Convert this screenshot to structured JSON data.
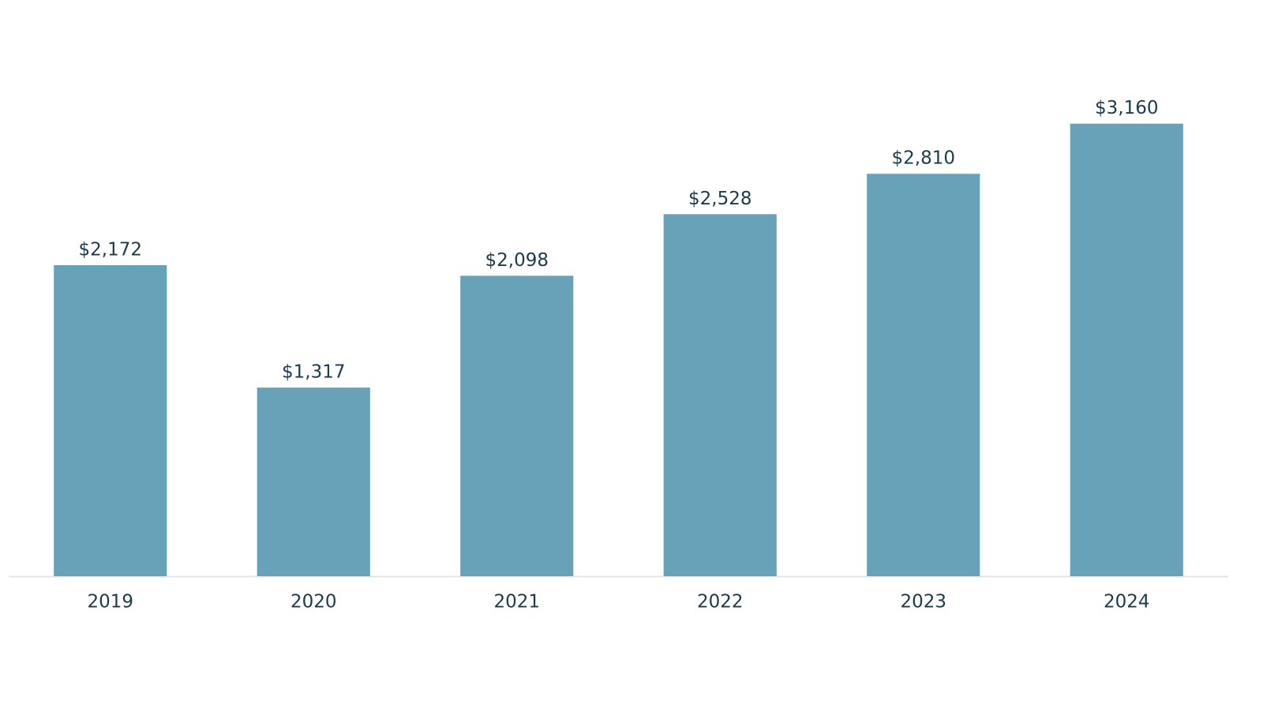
{
  "chart_data": {
    "type": "bar",
    "categories": [
      "2019",
      "2020",
      "2021",
      "2022",
      "2023",
      "2024"
    ],
    "values": [
      2172,
      1317,
      2098,
      2528,
      2810,
      3160
    ],
    "value_labels": [
      "$2,172",
      "$1,317",
      "$2,098",
      "$2,528",
      "$2,810",
      "$3,160"
    ],
    "color": "#68a2b9",
    "ylim": [
      0,
      3500
    ]
  }
}
